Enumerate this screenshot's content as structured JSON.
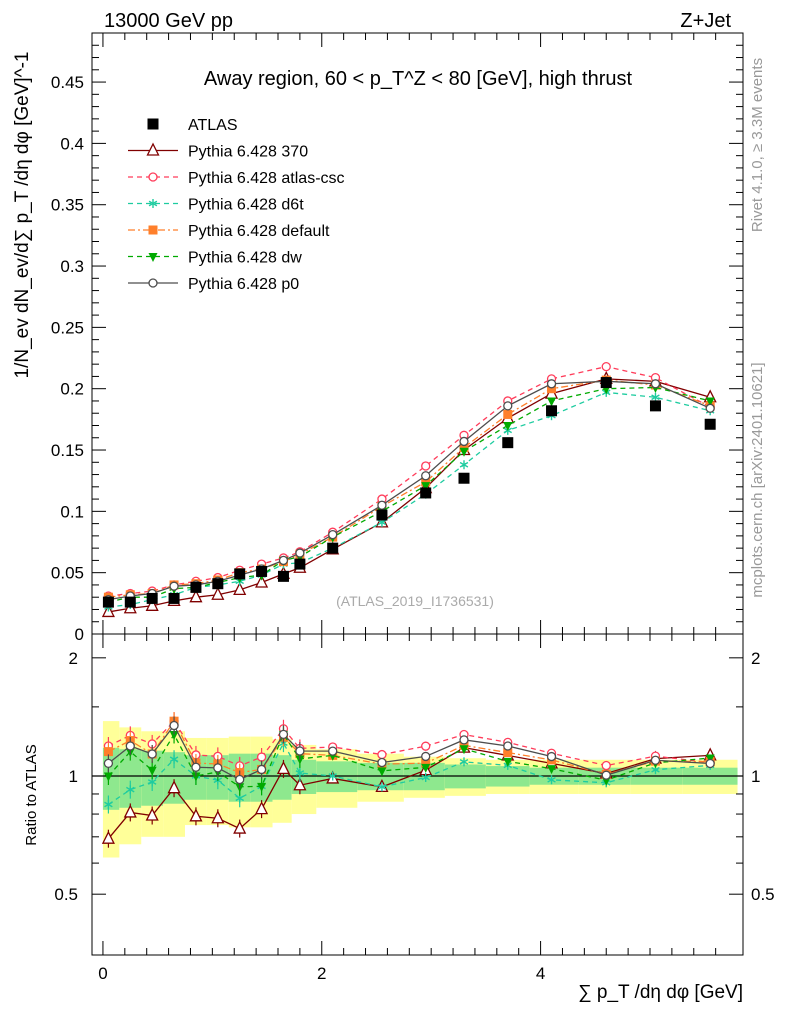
{
  "header": {
    "energy_label": "13000 GeV pp",
    "process_label": "Z+Jet",
    "side_label_top": "Rivet 4.1.0, ≥ 3.3M events",
    "side_label_bottom": "mcplots.cern.ch [arXiv:2401.10621]"
  },
  "chart_data": {
    "type": "scatter",
    "title": "Away region, 60 < p_T^Z < 80 [GeV], high thrust",
    "watermark": "(ATLAS_2019_I1736531)",
    "xlabel": "∑ p_T /dη dφ [GeV]",
    "ylabel": "1/N_ev dN_ev/d∑ p_T /dη dφ [GeV]^-1",
    "ratio_ylabel": "Ratio to ATLAS",
    "xlim": [
      -0.1,
      5.85
    ],
    "ylim": [
      0,
      0.49
    ],
    "ratio_ylim": [
      0.35,
      2.3
    ],
    "x_ticks": [
      "0",
      "2",
      "4"
    ],
    "y_ticks": [
      "0",
      "0.05",
      "0.1",
      "0.15",
      "0.2",
      "0.25",
      "0.3",
      "0.35",
      "0.4",
      "0.45"
    ],
    "ratio_ticks": [
      "0.5",
      "1",
      "2"
    ],
    "x": [
      0.05,
      0.25,
      0.45,
      0.65,
      0.85,
      1.05,
      1.25,
      1.45,
      1.65,
      1.8,
      2.1,
      2.55,
      2.95,
      3.3,
      3.7,
      4.1,
      4.6,
      5.05,
      5.55
    ],
    "data": {
      "name": "ATLAS",
      "values": [
        0.026,
        0.026,
        0.029,
        0.029,
        0.038,
        0.041,
        0.049,
        0.051,
        0.047,
        0.057,
        0.07,
        0.097,
        0.115,
        0.127,
        0.156,
        0.182,
        0.205,
        0.186,
        0.171
      ]
    },
    "series": [
      {
        "name": "Pythia 6.428 370",
        "color": "#800000",
        "marker": "triangle-open",
        "dash": "solid",
        "values": [
          0.018,
          0.021,
          0.023,
          0.027,
          0.03,
          0.032,
          0.036,
          0.042,
          0.049,
          0.054,
          0.069,
          0.091,
          0.119,
          0.15,
          0.176,
          0.196,
          0.208,
          0.206,
          0.193
        ]
      },
      {
        "name": "Pythia 6.428 atlas-csc",
        "color": "#ff3c5a",
        "marker": "circle-open",
        "dash": "dashed",
        "values": [
          0.031,
          0.033,
          0.035,
          0.04,
          0.043,
          0.046,
          0.052,
          0.057,
          0.062,
          0.067,
          0.083,
          0.11,
          0.137,
          0.162,
          0.19,
          0.208,
          0.218,
          0.209,
          0.185
        ]
      },
      {
        "name": "Pythia 6.428 d6t",
        "color": "#1ecca0",
        "marker": "star",
        "dash": "dashed",
        "values": [
          0.022,
          0.024,
          0.028,
          0.032,
          0.038,
          0.04,
          0.043,
          0.048,
          0.057,
          0.058,
          0.07,
          0.091,
          0.114,
          0.138,
          0.166,
          0.178,
          0.197,
          0.193,
          0.182
        ]
      },
      {
        "name": "Pythia 6.428 default",
        "color": "#ff7f2a",
        "marker": "square",
        "dash": "dashdot",
        "values": [
          0.03,
          0.032,
          0.033,
          0.04,
          0.041,
          0.044,
          0.05,
          0.053,
          0.059,
          0.065,
          0.079,
          0.104,
          0.124,
          0.152,
          0.179,
          0.2,
          0.207,
          0.203,
          0.186
        ]
      },
      {
        "name": "Pythia 6.428 dw",
        "color": "#00aa00",
        "marker": "triangle-down",
        "dash": "dashed",
        "values": [
          0.026,
          0.03,
          0.03,
          0.037,
          0.038,
          0.042,
          0.046,
          0.048,
          0.06,
          0.063,
          0.079,
          0.1,
          0.121,
          0.149,
          0.17,
          0.19,
          0.2,
          0.201,
          0.19
        ]
      },
      {
        "name": "Pythia 6.428 p0",
        "color": "#4d4d4d",
        "marker": "circle-open",
        "dash": "solid",
        "values": [
          0.028,
          0.031,
          0.033,
          0.039,
          0.04,
          0.043,
          0.048,
          0.053,
          0.06,
          0.066,
          0.081,
          0.105,
          0.129,
          0.157,
          0.186,
          0.204,
          0.206,
          0.204,
          0.184
        ]
      }
    ],
    "uncertainty_bands": {
      "stat_color": "#8ee88e",
      "syst_color": "#ffff99",
      "inner_halfwidth": [
        0.18,
        0.17,
        0.16,
        0.15,
        0.13,
        0.13,
        0.14,
        0.14,
        0.13,
        0.1,
        0.09,
        0.08,
        0.08,
        0.07,
        0.06,
        0.05,
        0.05,
        0.05,
        0.05
      ],
      "outer_halfwidth": [
        0.38,
        0.33,
        0.3,
        0.3,
        0.25,
        0.25,
        0.26,
        0.26,
        0.24,
        0.2,
        0.17,
        0.14,
        0.12,
        0.11,
        0.1,
        0.1,
        0.1,
        0.1,
        0.1
      ]
    },
    "legend_position": "top-left"
  }
}
